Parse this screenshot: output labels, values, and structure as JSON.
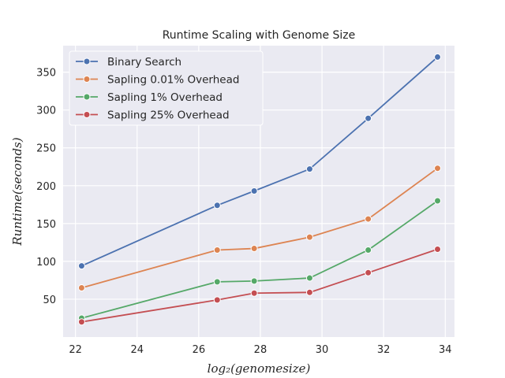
{
  "chart_data": {
    "type": "line",
    "title": "Runtime Scaling with Genome Size",
    "xlabel": "log₂(genomesize)",
    "ylabel": "Runtime(seconds)",
    "xlim": [
      21.6,
      34.3
    ],
    "ylim": [
      0,
      385
    ],
    "x_ticks": [
      "22",
      "24",
      "26",
      "28",
      "30",
      "32",
      "34"
    ],
    "y_ticks": [
      "50",
      "100",
      "150",
      "200",
      "250",
      "300",
      "350"
    ],
    "grid": true,
    "legend_position": "top-left",
    "x": [
      22.2,
      26.6,
      27.8,
      29.6,
      31.5,
      33.75
    ],
    "series": [
      {
        "name": "Binary Search",
        "color": "#4c72b0",
        "values": [
          94,
          174,
          193,
          222,
          289,
          370
        ]
      },
      {
        "name": "Sapling 0.01% Overhead",
        "color": "#dd8452",
        "values": [
          65,
          115,
          117,
          132,
          156,
          223
        ]
      },
      {
        "name": "Sapling 1% Overhead",
        "color": "#55a868",
        "values": [
          25,
          73,
          74,
          78,
          115,
          180
        ]
      },
      {
        "name": "Sapling 25% Overhead",
        "color": "#c44e52",
        "values": [
          20,
          49,
          58,
          59,
          85,
          116
        ]
      }
    ],
    "background_color": "#eaeaf2",
    "grid_color": "#ffffff"
  }
}
